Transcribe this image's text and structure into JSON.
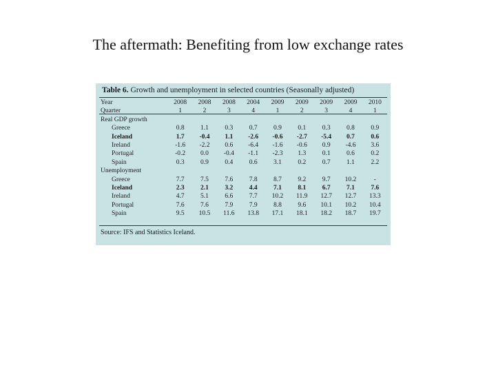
{
  "slide": {
    "title": "The aftermath: Benefiting from low exchange rates"
  },
  "table": {
    "caption_label": "Table 6.",
    "caption_text": "Growth and unemployment in selected countries (Seasonally adjusted)",
    "header_rows": [
      {
        "label": "Year",
        "values": [
          "2008",
          "2008",
          "2008",
          "2004",
          "2009",
          "2009",
          "2009",
          "2009",
          "2010"
        ]
      },
      {
        "label": "Quarter",
        "values": [
          "1",
          "2",
          "3",
          "4",
          "1",
          "2",
          "3",
          "4",
          "1"
        ]
      }
    ],
    "sections": [
      {
        "title": "Real GDP growth",
        "rows": [
          {
            "label": "Greece",
            "bold": false,
            "values": [
              "0.8",
              "1.1",
              "0.3",
              "0.7",
              "0.9",
              "0.1",
              "0.3",
              "0.8",
              "0.9"
            ]
          },
          {
            "label": "Iceland",
            "bold": true,
            "values": [
              "1.7",
              "-0.4",
              "1.1",
              "-2.6",
              "-0.6",
              "-2.7",
              "-5.4",
              "0.7",
              "0.6"
            ]
          },
          {
            "label": "Ireland",
            "bold": false,
            "values": [
              "-1.6",
              "-2.2",
              "0.6",
              "-6.4",
              "-1.6",
              "-0.6",
              "0.9",
              "-4.6",
              "3.6"
            ]
          },
          {
            "label": "Portugal",
            "bold": false,
            "values": [
              "-0.2",
              "0.0",
              "-0.4",
              "-1.1",
              "-2.3",
              "1.3",
              "0.1",
              "0.6",
              "0.2"
            ]
          },
          {
            "label": "Spain",
            "bold": false,
            "values": [
              "0.3",
              "0.9",
              "0.4",
              "0.6",
              "3.1",
              "0.2",
              "0.7",
              "1.1",
              "2.2"
            ]
          }
        ]
      },
      {
        "title": "Unemployment",
        "rows": [
          {
            "label": "Greece",
            "bold": false,
            "values": [
              "7.7",
              "7.5",
              "7.6",
              "7.8",
              "8.7",
              "9.2",
              "9.7",
              "10.2",
              "-"
            ]
          },
          {
            "label": "Iceland",
            "bold": true,
            "values": [
              "2.3",
              "2.1",
              "3.2",
              "4.4",
              "7.1",
              "8.1",
              "6.7",
              "7.1",
              "7.6"
            ]
          },
          {
            "label": "Ireland",
            "bold": false,
            "values": [
              "4.7",
              "5.1",
              "6.6",
              "7.7",
              "10.2",
              "11.9",
              "12.7",
              "12.7",
              "13.3"
            ]
          },
          {
            "label": "Portugal",
            "bold": false,
            "values": [
              "7.6",
              "7.6",
              "7.9",
              "7.9",
              "8.8",
              "9.6",
              "10.1",
              "10.2",
              "10.4"
            ]
          },
          {
            "label": "Spain",
            "bold": false,
            "values": [
              "9.5",
              "10.5",
              "11.6",
              "13.8",
              "17.1",
              "18.1",
              "18.2",
              "18.7",
              "19.7"
            ]
          }
        ]
      }
    ],
    "source": "Source: IFS and Statistics Iceland."
  },
  "colors": {
    "panel_background": "#c9e3e4"
  }
}
